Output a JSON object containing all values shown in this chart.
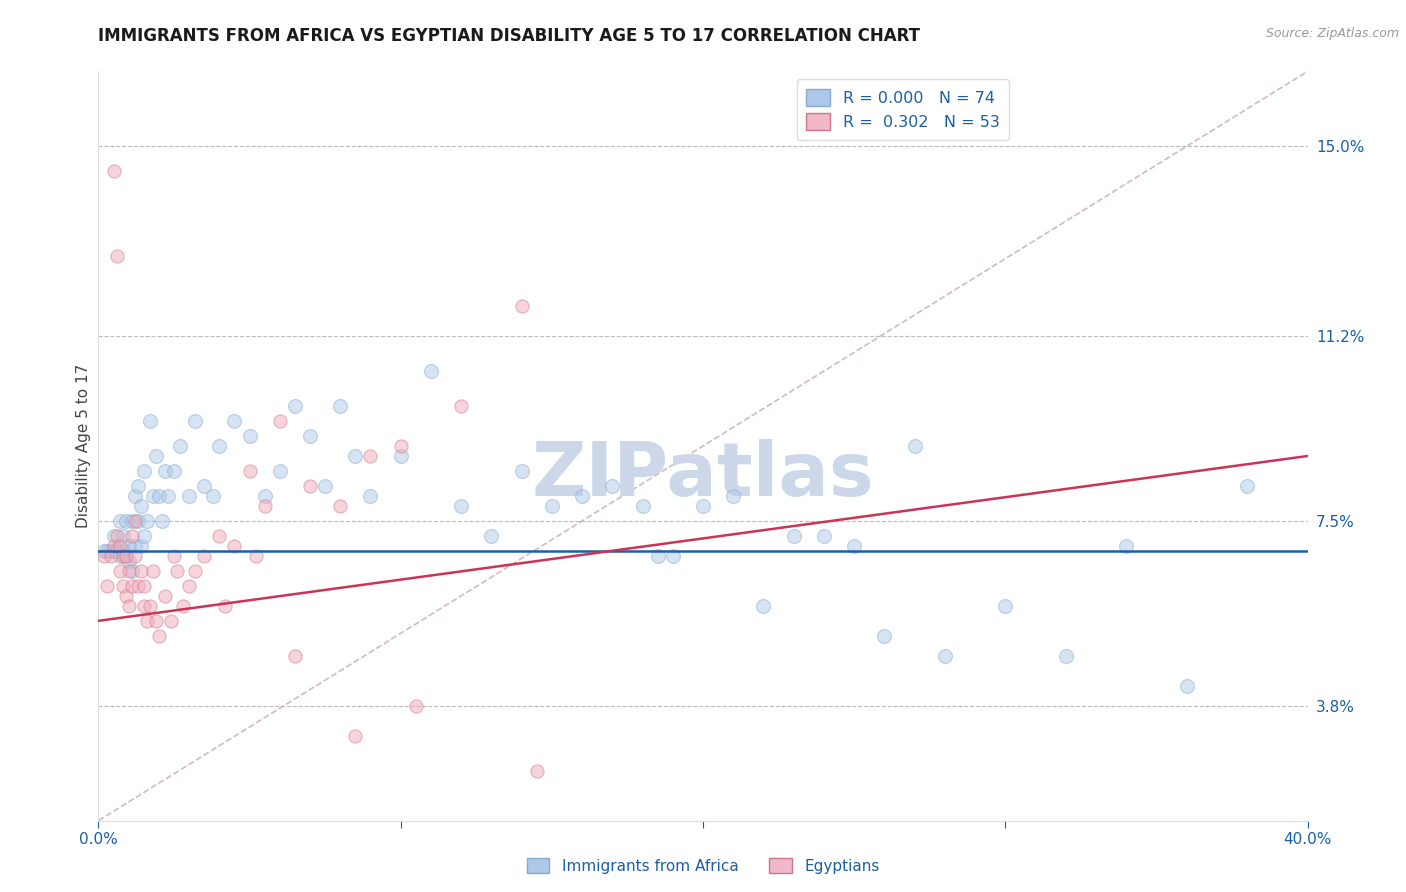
{
  "title": "IMMIGRANTS FROM AFRICA VS EGYPTIAN DISABILITY AGE 5 TO 17 CORRELATION CHART",
  "source": "Source: ZipAtlas.com",
  "ylabel": "Disability Age 5 to 17",
  "xmin": 0.0,
  "xmax": 40.0,
  "ymin": 1.5,
  "ymax": 16.5,
  "yticks": [
    3.8,
    7.5,
    11.2,
    15.0
  ],
  "xticks": [
    0.0,
    10.0,
    20.0,
    30.0,
    40.0
  ],
  "legend1_R": "0.000",
  "legend1_N": "74",
  "legend2_R": "0.302",
  "legend2_N": "53",
  "blue_color": "#adc8e8",
  "pink_color": "#f0a8b8",
  "trend_blue_color": "#1a5fa8",
  "trend_pink_color": "#cc3355",
  "diag_color": "#d0b0b8",
  "legend_blue_fill": "#adc8e8",
  "legend_pink_fill": "#f0b8c8",
  "title_color": "#1a1a1a",
  "axis_label_color": "#1a5fa8",
  "right_tick_color": "#1a5fa8",
  "watermark_color": "#ccd8ea",
  "blue_scatter_x": [
    0.2,
    0.3,
    0.4,
    0.5,
    0.5,
    0.6,
    0.7,
    0.7,
    0.8,
    0.8,
    0.9,
    0.9,
    1.0,
    1.0,
    1.1,
    1.1,
    1.2,
    1.2,
    1.3,
    1.3,
    1.4,
    1.4,
    1.5,
    1.5,
    1.6,
    1.7,
    1.8,
    1.9,
    2.0,
    2.1,
    2.2,
    2.3,
    2.5,
    2.7,
    3.0,
    3.2,
    3.5,
    3.8,
    4.0,
    4.5,
    5.0,
    5.5,
    6.0,
    6.5,
    7.0,
    7.5,
    8.0,
    8.5,
    9.0,
    10.0,
    11.0,
    12.0,
    13.0,
    14.0,
    15.0,
    16.0,
    17.0,
    18.0,
    19.0,
    20.0,
    21.0,
    22.0,
    24.0,
    25.0,
    26.0,
    28.0,
    30.0,
    32.0,
    34.0,
    36.0,
    38.0,
    18.5,
    23.0,
    27.0
  ],
  "blue_scatter_y": [
    6.9,
    6.9,
    6.9,
    6.9,
    7.2,
    6.9,
    7.5,
    6.8,
    6.9,
    7.2,
    7.5,
    6.8,
    7.0,
    6.7,
    7.5,
    6.5,
    8.0,
    7.0,
    8.2,
    7.5,
    7.8,
    7.0,
    8.5,
    7.2,
    7.5,
    9.5,
    8.0,
    8.8,
    8.0,
    7.5,
    8.5,
    8.0,
    8.5,
    9.0,
    8.0,
    9.5,
    8.2,
    8.0,
    9.0,
    9.5,
    9.2,
    8.0,
    8.5,
    9.8,
    9.2,
    8.2,
    9.8,
    8.8,
    8.0,
    8.8,
    10.5,
    7.8,
    7.2,
    8.5,
    7.8,
    8.0,
    8.2,
    7.8,
    6.8,
    7.8,
    8.0,
    5.8,
    7.2,
    7.0,
    5.2,
    4.8,
    5.8,
    4.8,
    7.0,
    4.2,
    8.2,
    6.8,
    7.2,
    9.0
  ],
  "pink_scatter_x": [
    0.2,
    0.3,
    0.4,
    0.5,
    0.5,
    0.6,
    0.6,
    0.7,
    0.7,
    0.8,
    0.8,
    0.9,
    0.9,
    1.0,
    1.0,
    1.1,
    1.1,
    1.2,
    1.2,
    1.3,
    1.4,
    1.5,
    1.5,
    1.6,
    1.7,
    1.8,
    1.9,
    2.0,
    2.2,
    2.4,
    2.6,
    2.8,
    3.0,
    3.5,
    4.0,
    4.5,
    5.0,
    5.5,
    6.0,
    7.0,
    8.0,
    9.0,
    10.0,
    12.0,
    14.0,
    2.5,
    3.2,
    4.2,
    5.2,
    6.5,
    8.5,
    10.5,
    14.5
  ],
  "pink_scatter_y": [
    6.8,
    6.2,
    6.8,
    7.0,
    14.5,
    7.2,
    12.8,
    6.5,
    7.0,
    6.2,
    6.8,
    6.0,
    6.8,
    5.8,
    6.5,
    6.2,
    7.2,
    6.8,
    7.5,
    6.2,
    6.5,
    5.8,
    6.2,
    5.5,
    5.8,
    6.5,
    5.5,
    5.2,
    6.0,
    5.5,
    6.5,
    5.8,
    6.2,
    6.8,
    7.2,
    7.0,
    8.5,
    7.8,
    9.5,
    8.2,
    7.8,
    8.8,
    9.0,
    9.8,
    11.8,
    6.8,
    6.5,
    5.8,
    6.8,
    4.8,
    3.2,
    3.8,
    2.5
  ],
  "blue_scatter_size": 100,
  "pink_scatter_size": 90,
  "blue_scatter_alpha": 0.5,
  "pink_scatter_alpha": 0.5,
  "trend_blue_y": 6.9,
  "trend_pink_x0": 0.0,
  "trend_pink_y0": 5.5,
  "trend_pink_x1": 40.0,
  "trend_pink_y1": 8.8,
  "diag_x0": 0.0,
  "diag_y0": 1.5,
  "diag_x1": 40.0,
  "diag_y1": 16.5,
  "bottom_legend_blue": "Immigrants from Africa",
  "bottom_legend_pink": "Egyptians"
}
